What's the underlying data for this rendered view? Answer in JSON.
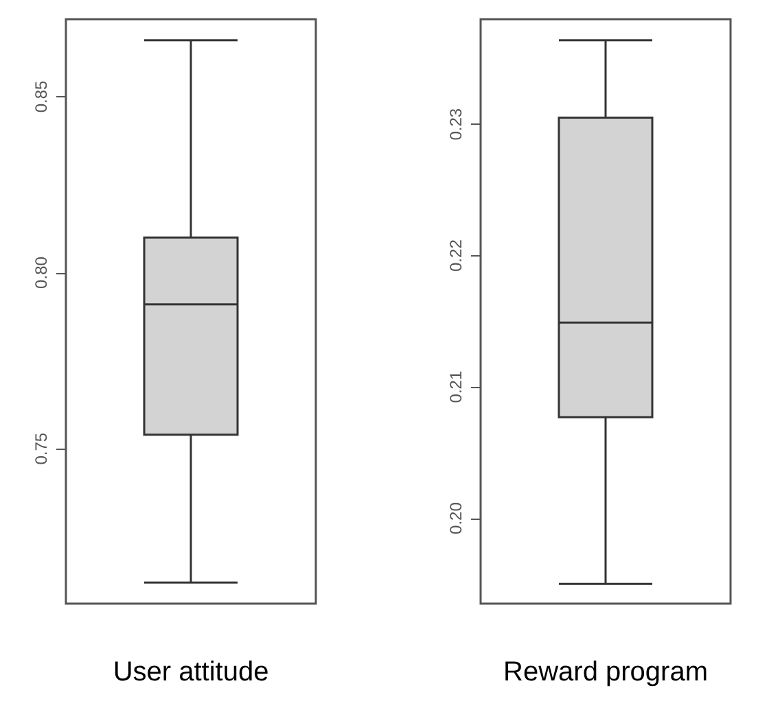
{
  "chart_data": [
    {
      "type": "box",
      "categories": [
        "User attitude"
      ],
      "series": [
        {
          "color": "#d3d3d3",
          "boxes": [
            {
              "low": 0.712,
              "q1": 0.754,
              "median": 0.791,
              "q3": 0.81,
              "high": 0.866
            }
          ]
        }
      ],
      "ylim": [
        0.706,
        0.872
      ],
      "yticks": [
        0.75,
        {
          "value": 0.8,
          "label": "0.80"
        },
        0.85
      ],
      "grid": false
    },
    {
      "type": "box",
      "categories": [
        "Reward program"
      ],
      "series": [
        {
          "color": "#d3d3d3",
          "boxes": [
            {
              "low": 0.195,
              "q1": 0.2077,
              "median": 0.2149,
              "q3": 0.2305,
              "high": 0.2364
            }
          ]
        }
      ],
      "ylim": [
        0.1935,
        0.238
      ],
      "yticks": [
        {
          "value": 0.2,
          "label": "0.20"
        },
        0.21,
        0.22,
        0.23
      ],
      "grid": false
    }
  ]
}
